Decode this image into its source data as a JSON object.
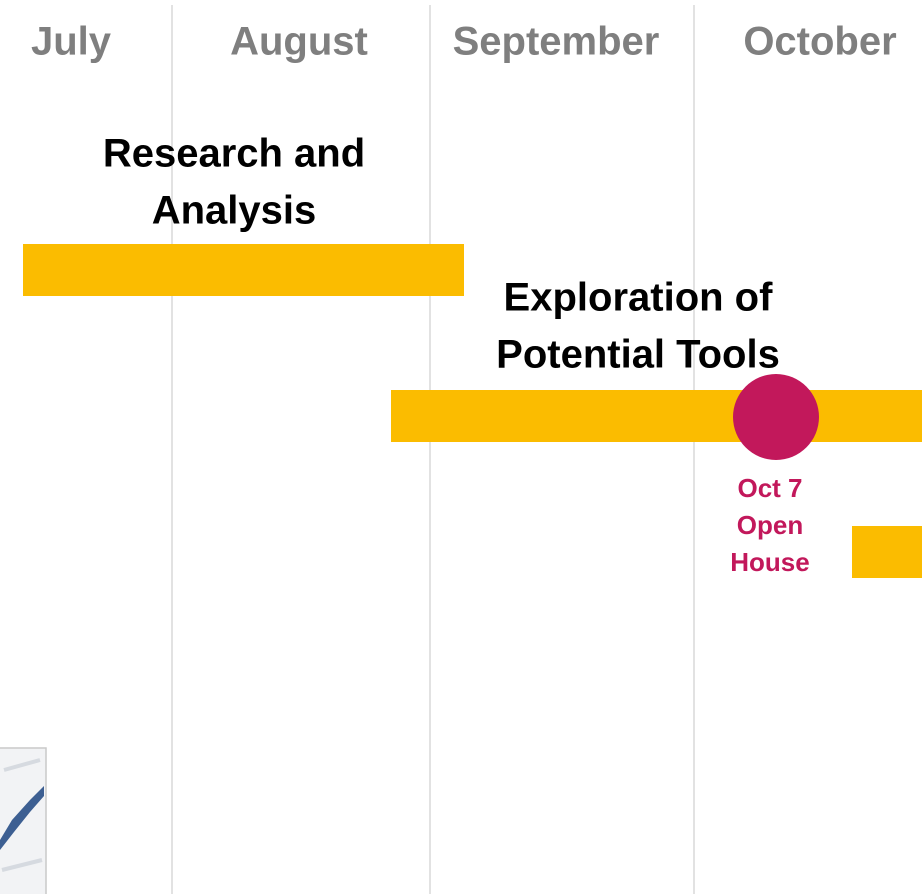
{
  "months": [
    "July",
    "August",
    "September",
    "October"
  ],
  "tasks": [
    {
      "label": [
        "Research and",
        "Analysis"
      ]
    },
    {
      "label": [
        "Exploration of",
        "Potential Tools"
      ]
    }
  ],
  "milestone": {
    "label": [
      "Oct 7",
      "Open",
      "House"
    ]
  }
}
